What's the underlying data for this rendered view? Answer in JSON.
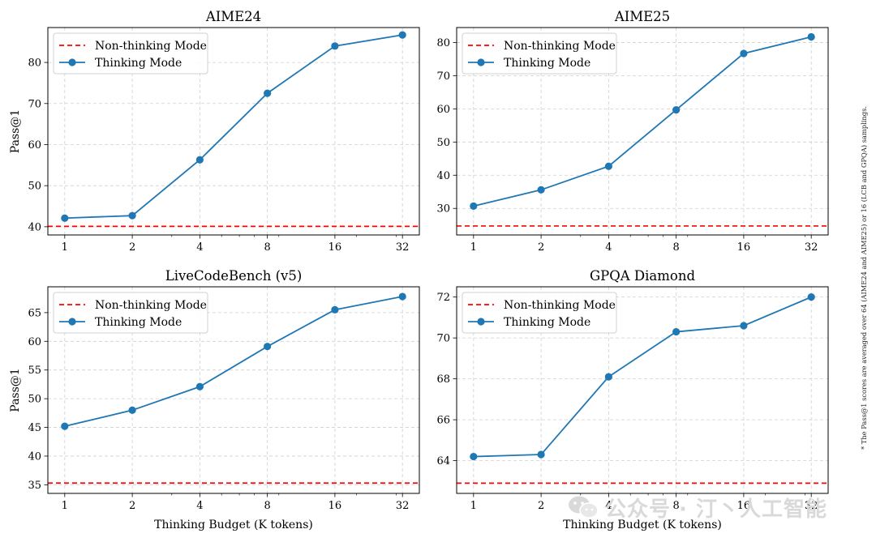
{
  "chart_data": [
    {
      "type": "line",
      "title": "AIME24",
      "ylabel": "Pass@1",
      "xlabel": "",
      "x_tick_labels": [
        "1",
        "2",
        "4",
        "8",
        "16",
        "32"
      ],
      "x": [
        1,
        2,
        4,
        8,
        16,
        32
      ],
      "x_scale": "log2",
      "ylim": [
        38,
        88.5
      ],
      "yticks": [
        40,
        50,
        60,
        70,
        80
      ],
      "y_tick_labels": [
        "40",
        "50",
        "60",
        "70",
        "80"
      ],
      "grid": true,
      "legend_position": "top-left",
      "baseline": {
        "name": "Non-thinking Mode",
        "value": 40.1,
        "color": "#ff0000",
        "style": "dashed"
      },
      "series": [
        {
          "name": "Thinking Mode",
          "values": [
            42.1,
            42.7,
            56.3,
            72.5,
            84.0,
            86.7
          ],
          "color": "#1f77b4"
        }
      ]
    },
    {
      "type": "line",
      "title": "AIME25",
      "ylabel": "",
      "xlabel": "",
      "x_tick_labels": [
        "1",
        "2",
        "4",
        "8",
        "16",
        "32"
      ],
      "x": [
        1,
        2,
        4,
        8,
        16,
        32
      ],
      "x_scale": "log2",
      "ylim": [
        22,
        84.5
      ],
      "yticks": [
        30,
        40,
        50,
        60,
        70,
        80
      ],
      "y_tick_labels": [
        "30",
        "40",
        "50",
        "60",
        "70",
        "80"
      ],
      "grid": true,
      "legend_position": "top-left",
      "baseline": {
        "name": "Non-thinking Mode",
        "value": 24.7,
        "color": "#ff0000",
        "style": "dashed"
      },
      "series": [
        {
          "name": "Thinking Mode",
          "values": [
            30.7,
            35.6,
            42.7,
            59.7,
            76.7,
            81.7
          ],
          "color": "#1f77b4"
        }
      ]
    },
    {
      "type": "line",
      "title": "LiveCodeBench (v5)",
      "ylabel": "Pass@1",
      "xlabel": "Thinking Budget (K tokens)",
      "x_tick_labels": [
        "1",
        "2",
        "4",
        "8",
        "16",
        "32"
      ],
      "x": [
        1,
        2,
        4,
        8,
        16,
        32
      ],
      "x_scale": "log2",
      "ylim": [
        33.5,
        69.5
      ],
      "yticks": [
        35,
        40,
        45,
        50,
        55,
        60,
        65
      ],
      "y_tick_labels": [
        "35",
        "40",
        "45",
        "50",
        "55",
        "60",
        "65"
      ],
      "grid": true,
      "legend_position": "top-left",
      "baseline": {
        "name": "Non-thinking Mode",
        "value": 35.3,
        "color": "#ff0000",
        "style": "dashed"
      },
      "series": [
        {
          "name": "Thinking Mode",
          "values": [
            45.2,
            48.0,
            52.1,
            59.1,
            65.5,
            67.8
          ],
          "color": "#1f77b4"
        }
      ]
    },
    {
      "type": "line",
      "title": "GPQA Diamond",
      "ylabel": "",
      "xlabel": "Thinking Budget (K tokens)",
      "x_tick_labels": [
        "1",
        "2",
        "4",
        "8",
        "16",
        "32"
      ],
      "x": [
        1,
        2,
        4,
        8,
        16,
        32
      ],
      "x_scale": "log2",
      "ylim": [
        62.4,
        72.5
      ],
      "yticks": [
        64,
        66,
        68,
        70,
        72
      ],
      "y_tick_labels": [
        "64",
        "66",
        "68",
        "70",
        "72"
      ],
      "grid": true,
      "legend_position": "top-left",
      "baseline": {
        "name": "Non-thinking Mode",
        "value": 62.9,
        "color": "#ff0000",
        "style": "dashed"
      },
      "series": [
        {
          "name": "Thinking Mode",
          "values": [
            64.2,
            64.3,
            68.1,
            70.3,
            70.6,
            72.0
          ],
          "color": "#1f77b4"
        }
      ]
    }
  ],
  "footnote": "* The Pass@1 scores are averaged over 64 (AIME24 and AIME25) or 16 (LCB and GPQA) samplings.",
  "watermark": {
    "text": "公众号 · 汀丶人工智能",
    "icon": "wechat-icon"
  }
}
